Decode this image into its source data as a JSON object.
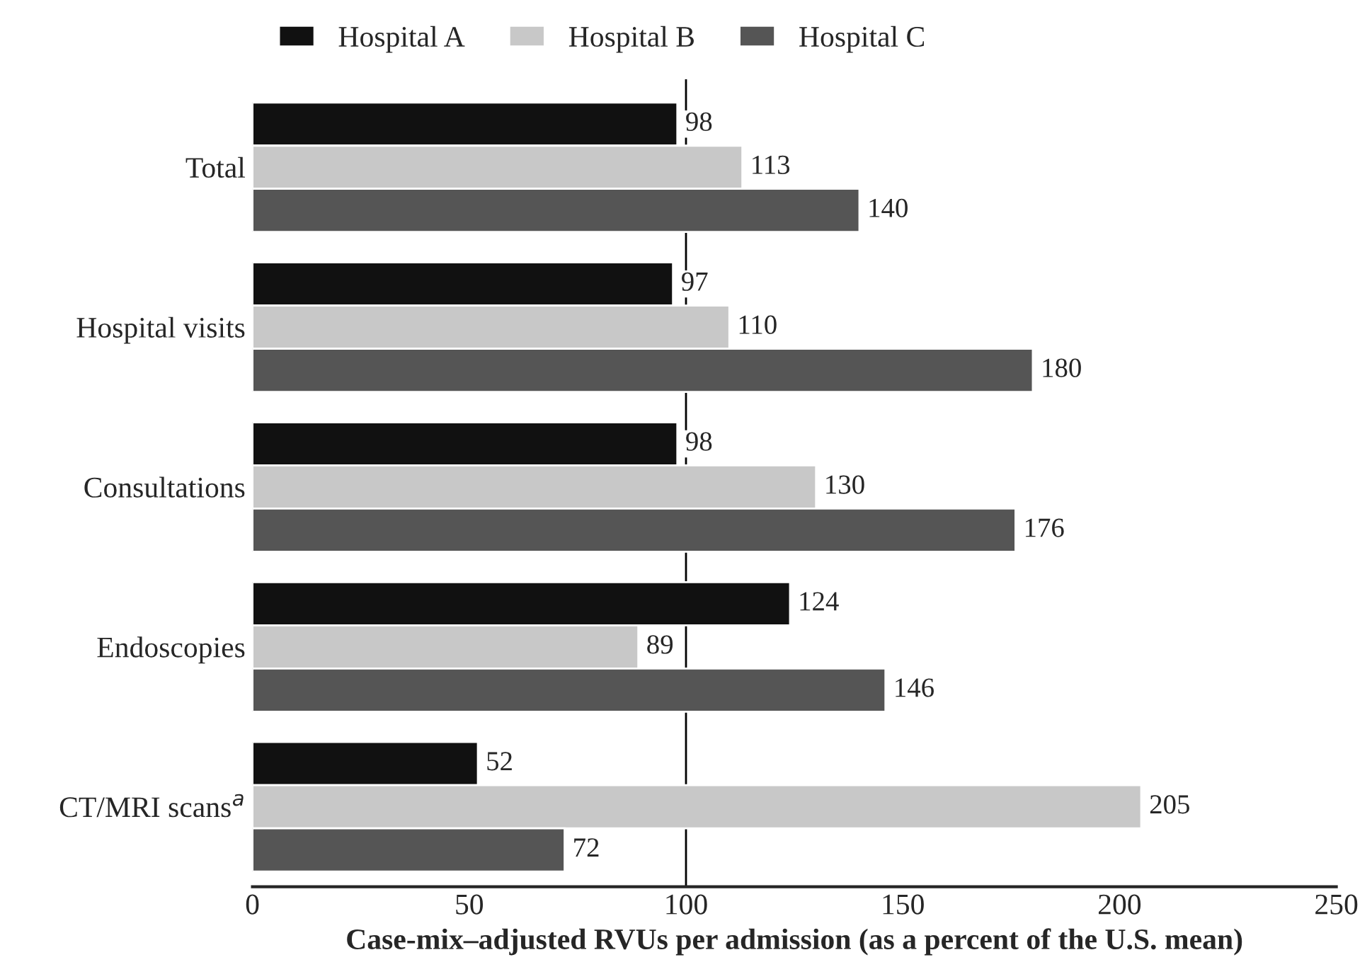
{
  "chart_data": {
    "type": "bar",
    "orientation": "horizontal",
    "categories": [
      "Total",
      "Hospital visits",
      "Consultations",
      "Endoscopies",
      "CT/MRI scans$^{a}$"
    ],
    "series": [
      {
        "name": "Hospital A",
        "color": "#111111",
        "values": [
          98,
          97,
          98,
          124,
          52
        ]
      },
      {
        "name": "Hospital B",
        "color": "#c8c8c8",
        "values": [
          113,
          110,
          130,
          89,
          205
        ]
      },
      {
        "name": "Hospital C",
        "color": "#555555",
        "values": [
          140,
          180,
          176,
          146,
          72
        ]
      }
    ],
    "xlabel": "Case-mix–adjusted RVUs per admission (as a percent of the U.S. mean)",
    "xlim": [
      0,
      250
    ],
    "xticks": [
      0,
      50,
      100,
      150,
      200,
      250
    ],
    "ref_lines": [
      {
        "axis": "x",
        "value": 100,
        "color": "#000000"
      }
    ],
    "data_labels": true,
    "legend": "top",
    "grid": false
  }
}
